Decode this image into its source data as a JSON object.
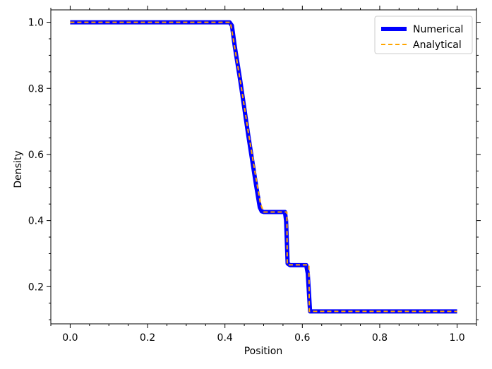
{
  "chart_data": {
    "type": "line",
    "xlabel": "Position",
    "ylabel": "Density",
    "xlim": [
      -0.05,
      1.05
    ],
    "ylim": [
      0.0875,
      1.0375
    ],
    "xticks": [
      0.0,
      0.2,
      0.4,
      0.6,
      0.8,
      1.0
    ],
    "xtick_labels": [
      "0.0",
      "0.2",
      "0.4",
      "0.6",
      "0.8",
      "1.0"
    ],
    "yticks": [
      0.2,
      0.4,
      0.6,
      0.8,
      1.0
    ],
    "ytick_labels": [
      "0.2",
      "0.4",
      "0.6",
      "0.8",
      "1.0"
    ],
    "minor_ticks": true,
    "ticks_both_sides": true,
    "grid": false,
    "legend_position": "top-right",
    "series": [
      {
        "name": "Numerical",
        "color": "#0000ff",
        "style": "solid-thick",
        "x": [
          0.0,
          0.412,
          0.418,
          0.425,
          0.44,
          0.46,
          0.48,
          0.49,
          0.495,
          0.5,
          0.555,
          0.558,
          0.562,
          0.568,
          0.61,
          0.614,
          0.62,
          1.0
        ],
        "y": [
          1.0,
          1.0,
          0.99,
          0.93,
          0.82,
          0.66,
          0.51,
          0.44,
          0.428,
          0.426,
          0.426,
          0.4,
          0.27,
          0.265,
          0.265,
          0.24,
          0.125,
          0.125
        ]
      },
      {
        "name": "Analytical",
        "color": "#ffa500",
        "style": "dashed",
        "x": [
          0.0,
          0.414,
          0.42,
          0.44,
          0.46,
          0.48,
          0.492,
          0.5,
          0.56,
          0.561,
          0.617,
          0.618,
          1.0
        ],
        "y": [
          1.0,
          1.0,
          0.96,
          0.82,
          0.67,
          0.53,
          0.45,
          0.426,
          0.426,
          0.266,
          0.266,
          0.125,
          0.125
        ]
      }
    ]
  }
}
